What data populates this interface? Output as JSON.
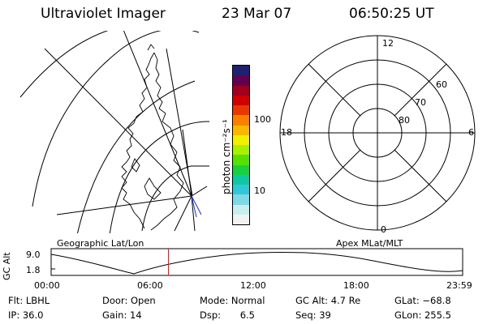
{
  "header": {
    "instrument": "Ultraviolet Imager",
    "date": "23 Mar 07",
    "time": "06:50:25 UT"
  },
  "colorbar": {
    "label": "photon cm⁻²s⁻¹",
    "tick_100": "100",
    "tick_10": "10",
    "colors": [
      "#f2f2f2",
      "#c8eef0",
      "#7fd8e6",
      "#2ec8d8",
      "#10c8a0",
      "#18d040",
      "#58e000",
      "#a8f000",
      "#f0f000",
      "#f8b800",
      "#f88000",
      "#e83800",
      "#d00000",
      "#a00020",
      "#600050",
      "#202070"
    ]
  },
  "projection_left": {
    "label": "Geographic Lat/Lon"
  },
  "projection_right": {
    "label": "Apex MLat/MLT",
    "mlt_labels": {
      "top": "12",
      "left": "18",
      "right": "6",
      "bottom": "0"
    },
    "mlat_labels": [
      "60",
      "70",
      "80"
    ]
  },
  "altitude_plot": {
    "ylabel": "GC Alt",
    "ymax_label": "9.0",
    "ymin_label": "1.8",
    "ticks": [
      "00:00",
      "06:00",
      "12:00",
      "18:00",
      "23:59"
    ],
    "current_time_hours": 6.84
  },
  "info": {
    "flt_label": "Flt:",
    "flt_value": "LBHL",
    "ip_label": "IP:",
    "ip_value": "36.0",
    "door_label": "Door:",
    "door_value": "Open",
    "gain_label": "Gain:",
    "gain_value": "14",
    "mode_label": "Mode:",
    "mode_value": "Normal",
    "dsp_label": "Dsp:",
    "dsp_value": "6.5",
    "gcalt_label": "GC Alt:",
    "gcalt_value": "4.7 Re",
    "seq_label": "Seq:",
    "seq_value": "39",
    "glat_label": "GLat:",
    "glat_value": "−68.8",
    "glon_label": "GLon:",
    "glon_value": "255.5"
  }
}
